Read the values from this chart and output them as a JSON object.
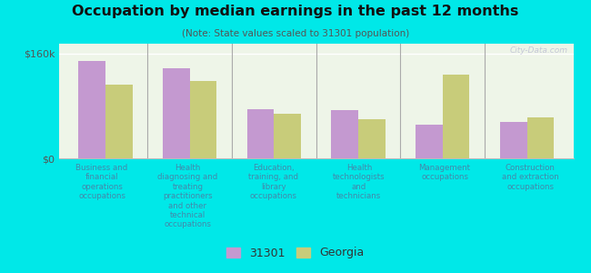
{
  "title": "Occupation by median earnings in the past 12 months",
  "subtitle": "(Note: State values scaled to 31301 population)",
  "categories": [
    "Business and\nfinancial\noperations\noccupations",
    "Health\ndiagnosing and\ntreating\npractitioners\nand other\ntechnical\noccupations",
    "Education,\ntraining, and\nlibrary\noccupations",
    "Health\ntechnologists\nand\ntechnicians",
    "Management\noccupations",
    "Construction\nand extraction\noccupations"
  ],
  "values_31301": [
    148000,
    138000,
    75000,
    73000,
    52000,
    55000
  ],
  "values_georgia": [
    112000,
    118000,
    68000,
    60000,
    128000,
    63000
  ],
  "color_31301": "#c499d0",
  "color_georgia": "#c8cc7a",
  "ylim": [
    0,
    175000
  ],
  "ytick_labels": [
    "$0",
    "$160k"
  ],
  "ytick_vals": [
    0,
    160000
  ],
  "background_color": "#00e8e8",
  "plot_bg_color": "#eef5e8",
  "label_color": "#4488aa",
  "legend_label_31301": "31301",
  "legend_label_georgia": "Georgia",
  "watermark": "City-Data.com"
}
